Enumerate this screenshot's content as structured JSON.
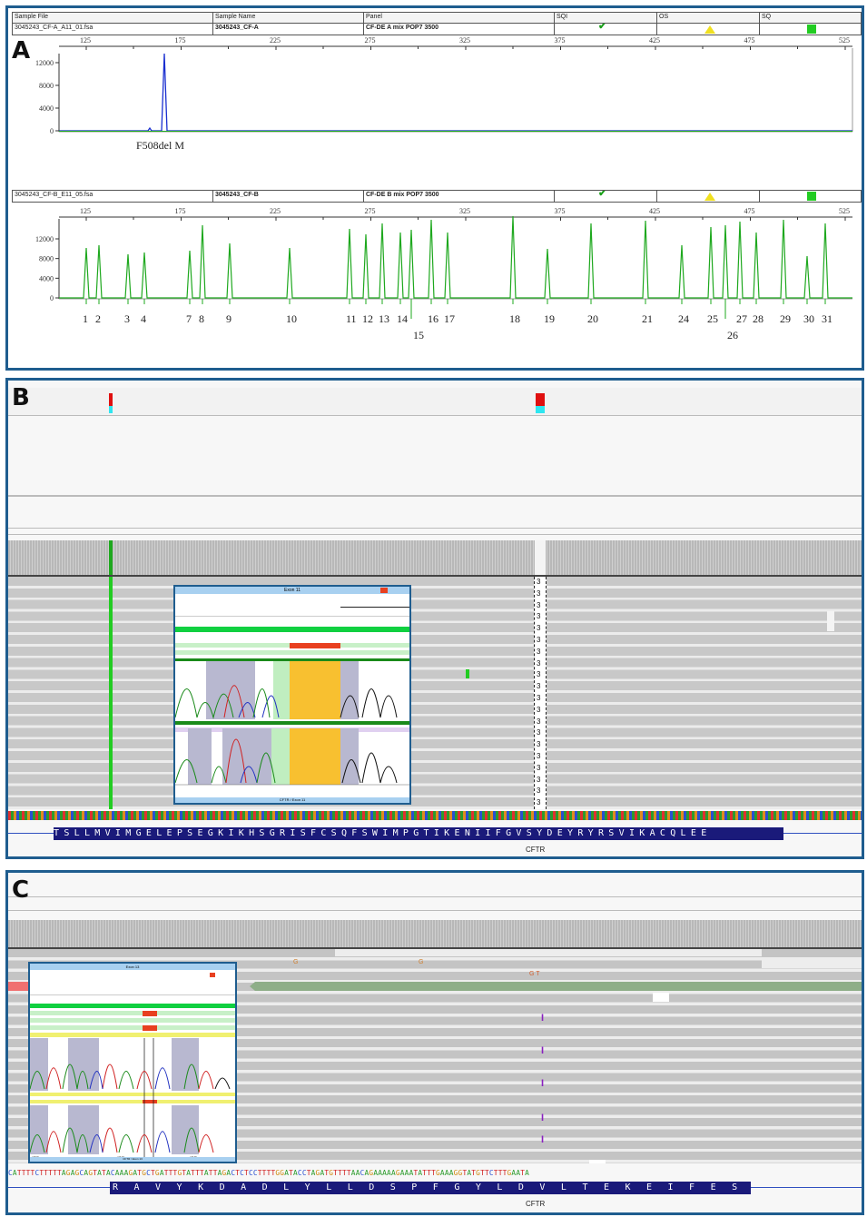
{
  "panelA": {
    "label": "A",
    "headers": [
      "Sample File",
      "Sample Name",
      "Panel",
      "SQI",
      "OS",
      "SQ"
    ],
    "sample1": {
      "file": "3045243_CF-A_A11_01.fsa",
      "name": "3045243_CF-A",
      "panel": "CF-DE A mix POP7 3500",
      "ticks": [
        "125",
        "175",
        "225",
        "275",
        "325",
        "375",
        "425",
        "475",
        "525"
      ],
      "yticks": [
        "12000",
        "8000",
        "4000",
        "0"
      ],
      "peak_label": "F508del M"
    },
    "sample2": {
      "file": "3045243_CF-B_E11_05.fsa",
      "name": "3045243_CF-B",
      "panel": "CF-DE B mix POP7 3500",
      "ticks": [
        "125",
        "175",
        "225",
        "275",
        "325",
        "375",
        "425",
        "475",
        "525"
      ],
      "yticks": [
        "12000",
        "8000",
        "4000",
        "0"
      ],
      "peak_labels": [
        "1",
        "2",
        "3",
        "4",
        "7",
        "8",
        "9",
        "10",
        "11",
        "12",
        "13",
        "14",
        "15",
        "16",
        "17",
        "18",
        "19",
        "20",
        "21",
        "24",
        "25",
        "26",
        "27",
        "28",
        "29",
        "30",
        "31"
      ]
    },
    "colors": {
      "sqi_check": "#1aa01a",
      "os_warning": "#f0e020",
      "sq_square": "#22cc22",
      "trace_blue": "#1a2fd0",
      "trace_green": "#1ea81e"
    }
  },
  "panelB": {
    "label": "B",
    "read_marker": "3",
    "inset": {
      "title": "Exon 11",
      "axis_ticks": [
        "125",
        "130",
        "135"
      ],
      "footer": "CFTR / Exon 11"
    },
    "amino_acids": "TSLLMVIMGELEPSEGKIKHSGRISFCSQFSWIMPGTIKENIIFGVSYDEYRYRSVIKACQLEE",
    "gene": "CFTR"
  },
  "panelC": {
    "label": "C",
    "read_letters_1": "G",
    "read_letters_2": "G",
    "read_gt": "G T",
    "inset": {
      "title": "Exon 13",
      "footer": "CFTR / Exon 13",
      "axis_ticks": [
        "1735",
        "1740",
        "1745"
      ]
    },
    "dna_sequence": "CATTTTCTTTTTAGAGCAGTATACAAAGATGCTGATTTGTATTTATTAGACTCTCCTTTTGGATACCTAGATGTTTTAACAGAAAAAGAAATATTTGAAAGGTATGTTCTTTGAATA",
    "amino_acids": "RAVYKDADLYLLDSPFGYLDVLTEKEIFES",
    "gene": "CFTR"
  }
}
